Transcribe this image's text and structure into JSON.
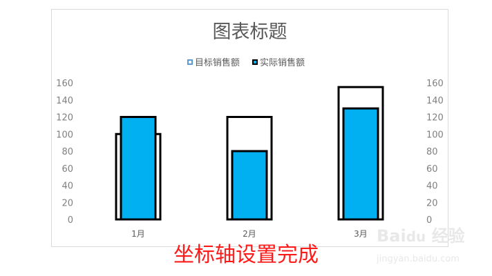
{
  "chart_data": {
    "type": "bar",
    "title": "图表标题",
    "categories": [
      "1月",
      "2月",
      "3月"
    ],
    "series": [
      {
        "name": "目标销售额",
        "values": [
          100,
          120,
          155
        ],
        "fill": "#ffffff",
        "stroke": "#000000",
        "axis": "secondary"
      },
      {
        "name": "实际销售额",
        "values": [
          120,
          80,
          130
        ],
        "fill": "#00b0f0",
        "stroke": "#000000",
        "axis": "primary"
      }
    ],
    "ylim": [
      0,
      160
    ],
    "yticks": [
      0,
      20,
      40,
      60,
      80,
      100,
      120,
      140,
      160
    ],
    "y2lim": [
      0,
      160
    ],
    "grid": false,
    "legend": "top"
  },
  "legend_colors": {
    "target_icon": "#5b9bd5",
    "actual_icon_border": "#000000",
    "actual_icon_fill": "#00b0f0"
  },
  "caption": "坐标轴设置完成",
  "watermark": {
    "logo": "Baidu经验",
    "url": "jingyan.baidu.com"
  }
}
